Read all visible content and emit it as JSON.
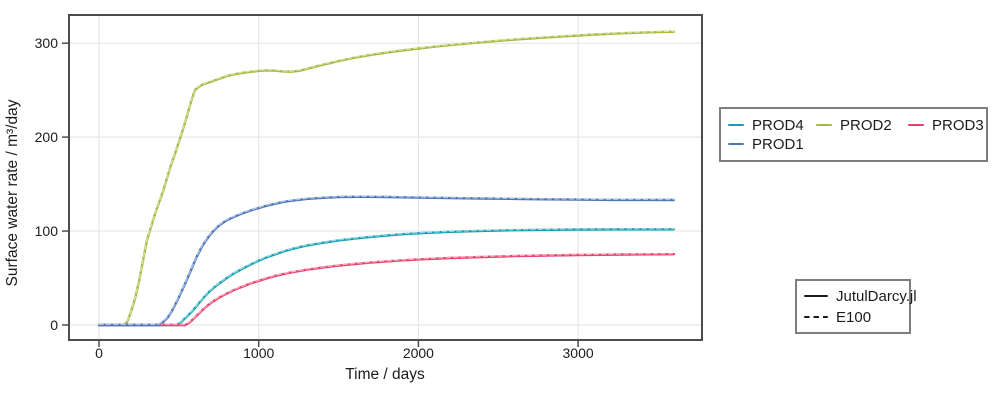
{
  "chart_data": {
    "type": "line",
    "xlabel": "Time / days",
    "ylabel": "Surface water rate / m³/day",
    "xlim": [
      -188,
      3776
    ],
    "ylim": [
      -16,
      330
    ],
    "xticks": [
      0,
      1000,
      2000,
      3000
    ],
    "yticks": [
      0,
      100,
      200,
      300
    ],
    "grid": true,
    "legend_position": "right",
    "colors": {
      "background": "#ffffff",
      "grid": "#e6e6e6",
      "spine": "#4d4d4d",
      "text": "#1c1c1c",
      "legend_border": "#7e7e7e",
      "style_legend_line": "#1a1a1a"
    },
    "series": [
      {
        "name": "PROD4",
        "color": "#14a0b4",
        "dash_color": "#8fd3da",
        "points": [
          [
            0,
            0
          ],
          [
            200,
            0
          ],
          [
            350,
            0
          ],
          [
            490,
            0
          ],
          [
            520,
            4
          ],
          [
            550,
            9
          ],
          [
            580,
            14
          ],
          [
            610,
            20
          ],
          [
            640,
            26
          ],
          [
            670,
            32
          ],
          [
            700,
            37
          ],
          [
            750,
            44
          ],
          [
            800,
            50
          ],
          [
            850,
            55.5
          ],
          [
            900,
            60
          ],
          [
            950,
            64.5
          ],
          [
            1000,
            68.5
          ],
          [
            1050,
            72
          ],
          [
            1100,
            75
          ],
          [
            1150,
            78
          ],
          [
            1200,
            80.5
          ],
          [
            1250,
            82.7
          ],
          [
            1300,
            84.5
          ],
          [
            1350,
            86
          ],
          [
            1400,
            87.5
          ],
          [
            1500,
            90
          ],
          [
            1600,
            92
          ],
          [
            1700,
            93.8
          ],
          [
            1800,
            95.3
          ],
          [
            1900,
            96.6
          ],
          [
            2000,
            97.6
          ],
          [
            2200,
            99.2
          ],
          [
            2400,
            100.2
          ],
          [
            2600,
            100.9
          ],
          [
            2800,
            101.3
          ],
          [
            3000,
            101.6
          ],
          [
            3300,
            101.8
          ],
          [
            3600,
            101.9
          ]
        ]
      },
      {
        "name": "PROD2",
        "color": "#a3ba3e",
        "dash_color": "#d2de9c",
        "points": [
          [
            0,
            0
          ],
          [
            100,
            0
          ],
          [
            150,
            0
          ],
          [
            175,
            3
          ],
          [
            200,
            14
          ],
          [
            225,
            28
          ],
          [
            250,
            46
          ],
          [
            275,
            68
          ],
          [
            300,
            90
          ],
          [
            325,
            104
          ],
          [
            350,
            118
          ],
          [
            375,
            130
          ],
          [
            400,
            142
          ],
          [
            425,
            156
          ],
          [
            450,
            170
          ],
          [
            475,
            182
          ],
          [
            500,
            195
          ],
          [
            525,
            208
          ],
          [
            550,
            222
          ],
          [
            575,
            237
          ],
          [
            600,
            250
          ],
          [
            625,
            253.5
          ],
          [
            650,
            256
          ],
          [
            700,
            259
          ],
          [
            750,
            262
          ],
          [
            800,
            265
          ],
          [
            850,
            267
          ],
          [
            900,
            268.5
          ],
          [
            950,
            269.5
          ],
          [
            1000,
            270.5
          ],
          [
            1050,
            271
          ],
          [
            1100,
            270.8
          ],
          [
            1150,
            270
          ],
          [
            1200,
            269.6
          ],
          [
            1250,
            270.5
          ],
          [
            1300,
            272.5
          ],
          [
            1350,
            274.8
          ],
          [
            1400,
            277
          ],
          [
            1450,
            279
          ],
          [
            1500,
            281
          ],
          [
            1600,
            284.5
          ],
          [
            1700,
            287.5
          ],
          [
            1800,
            290
          ],
          [
            1900,
            292.3
          ],
          [
            2000,
            294.3
          ],
          [
            2100,
            296.2
          ],
          [
            2200,
            298
          ],
          [
            2300,
            299.5
          ],
          [
            2400,
            301
          ],
          [
            2500,
            302.5
          ],
          [
            2600,
            303.8
          ],
          [
            2700,
            305
          ],
          [
            2800,
            306.2
          ],
          [
            2900,
            307.2
          ],
          [
            3000,
            308.2
          ],
          [
            3100,
            309.2
          ],
          [
            3200,
            310
          ],
          [
            3300,
            310.7
          ],
          [
            3400,
            311.3
          ],
          [
            3500,
            311.8
          ],
          [
            3600,
            312.2
          ]
        ]
      },
      {
        "name": "PROD3",
        "color": "#e9406e",
        "dash_color": "#f5a6bc",
        "points": [
          [
            0,
            0
          ],
          [
            200,
            0
          ],
          [
            400,
            0
          ],
          [
            540,
            0
          ],
          [
            570,
            3
          ],
          [
            600,
            8
          ],
          [
            630,
            13
          ],
          [
            660,
            18
          ],
          [
            700,
            23.5
          ],
          [
            750,
            29
          ],
          [
            800,
            33.5
          ],
          [
            850,
            37.5
          ],
          [
            900,
            41
          ],
          [
            950,
            44.3
          ],
          [
            1000,
            47
          ],
          [
            1050,
            49.7
          ],
          [
            1100,
            52
          ],
          [
            1150,
            54
          ],
          [
            1200,
            55.8
          ],
          [
            1300,
            58.8
          ],
          [
            1400,
            61.2
          ],
          [
            1500,
            63.2
          ],
          [
            1600,
            64.9
          ],
          [
            1700,
            66.4
          ],
          [
            1800,
            67.7
          ],
          [
            1900,
            68.8
          ],
          [
            2000,
            69.8
          ],
          [
            2200,
            71.3
          ],
          [
            2400,
            72.4
          ],
          [
            2600,
            73.3
          ],
          [
            2800,
            74
          ],
          [
            3000,
            74.5
          ],
          [
            3300,
            75
          ],
          [
            3600,
            75.3
          ]
        ]
      },
      {
        "name": "PROD1",
        "color": "#4d74b8",
        "dash_color": "#abc0e0",
        "points": [
          [
            0,
            0
          ],
          [
            200,
            0
          ],
          [
            370,
            0
          ],
          [
            400,
            3
          ],
          [
            430,
            8
          ],
          [
            460,
            16
          ],
          [
            490,
            26
          ],
          [
            520,
            37
          ],
          [
            550,
            48
          ],
          [
            580,
            60
          ],
          [
            610,
            72
          ],
          [
            640,
            82
          ],
          [
            670,
            90
          ],
          [
            700,
            97
          ],
          [
            730,
            102.5
          ],
          [
            760,
            107
          ],
          [
            800,
            111.5
          ],
          [
            850,
            115.5
          ],
          [
            900,
            119
          ],
          [
            950,
            122
          ],
          [
            1000,
            124.5
          ],
          [
            1050,
            127
          ],
          [
            1100,
            129
          ],
          [
            1150,
            130.8
          ],
          [
            1200,
            132.2
          ],
          [
            1300,
            134.2
          ],
          [
            1400,
            135.4
          ],
          [
            1500,
            136.1
          ],
          [
            1600,
            136.4
          ],
          [
            1700,
            136.4
          ],
          [
            1800,
            136.2
          ],
          [
            1900,
            135.9
          ],
          [
            2000,
            135.6
          ],
          [
            2200,
            135.1
          ],
          [
            2400,
            134.6
          ],
          [
            2600,
            134.2
          ],
          [
            2800,
            133.8
          ],
          [
            3000,
            133.5
          ],
          [
            3200,
            133.2
          ],
          [
            3400,
            133.1
          ],
          [
            3600,
            133
          ]
        ]
      }
    ],
    "style_legend": [
      {
        "label": "JutulDarcy.jl",
        "style": "solid"
      },
      {
        "label": "E100",
        "style": "dashed"
      }
    ]
  }
}
